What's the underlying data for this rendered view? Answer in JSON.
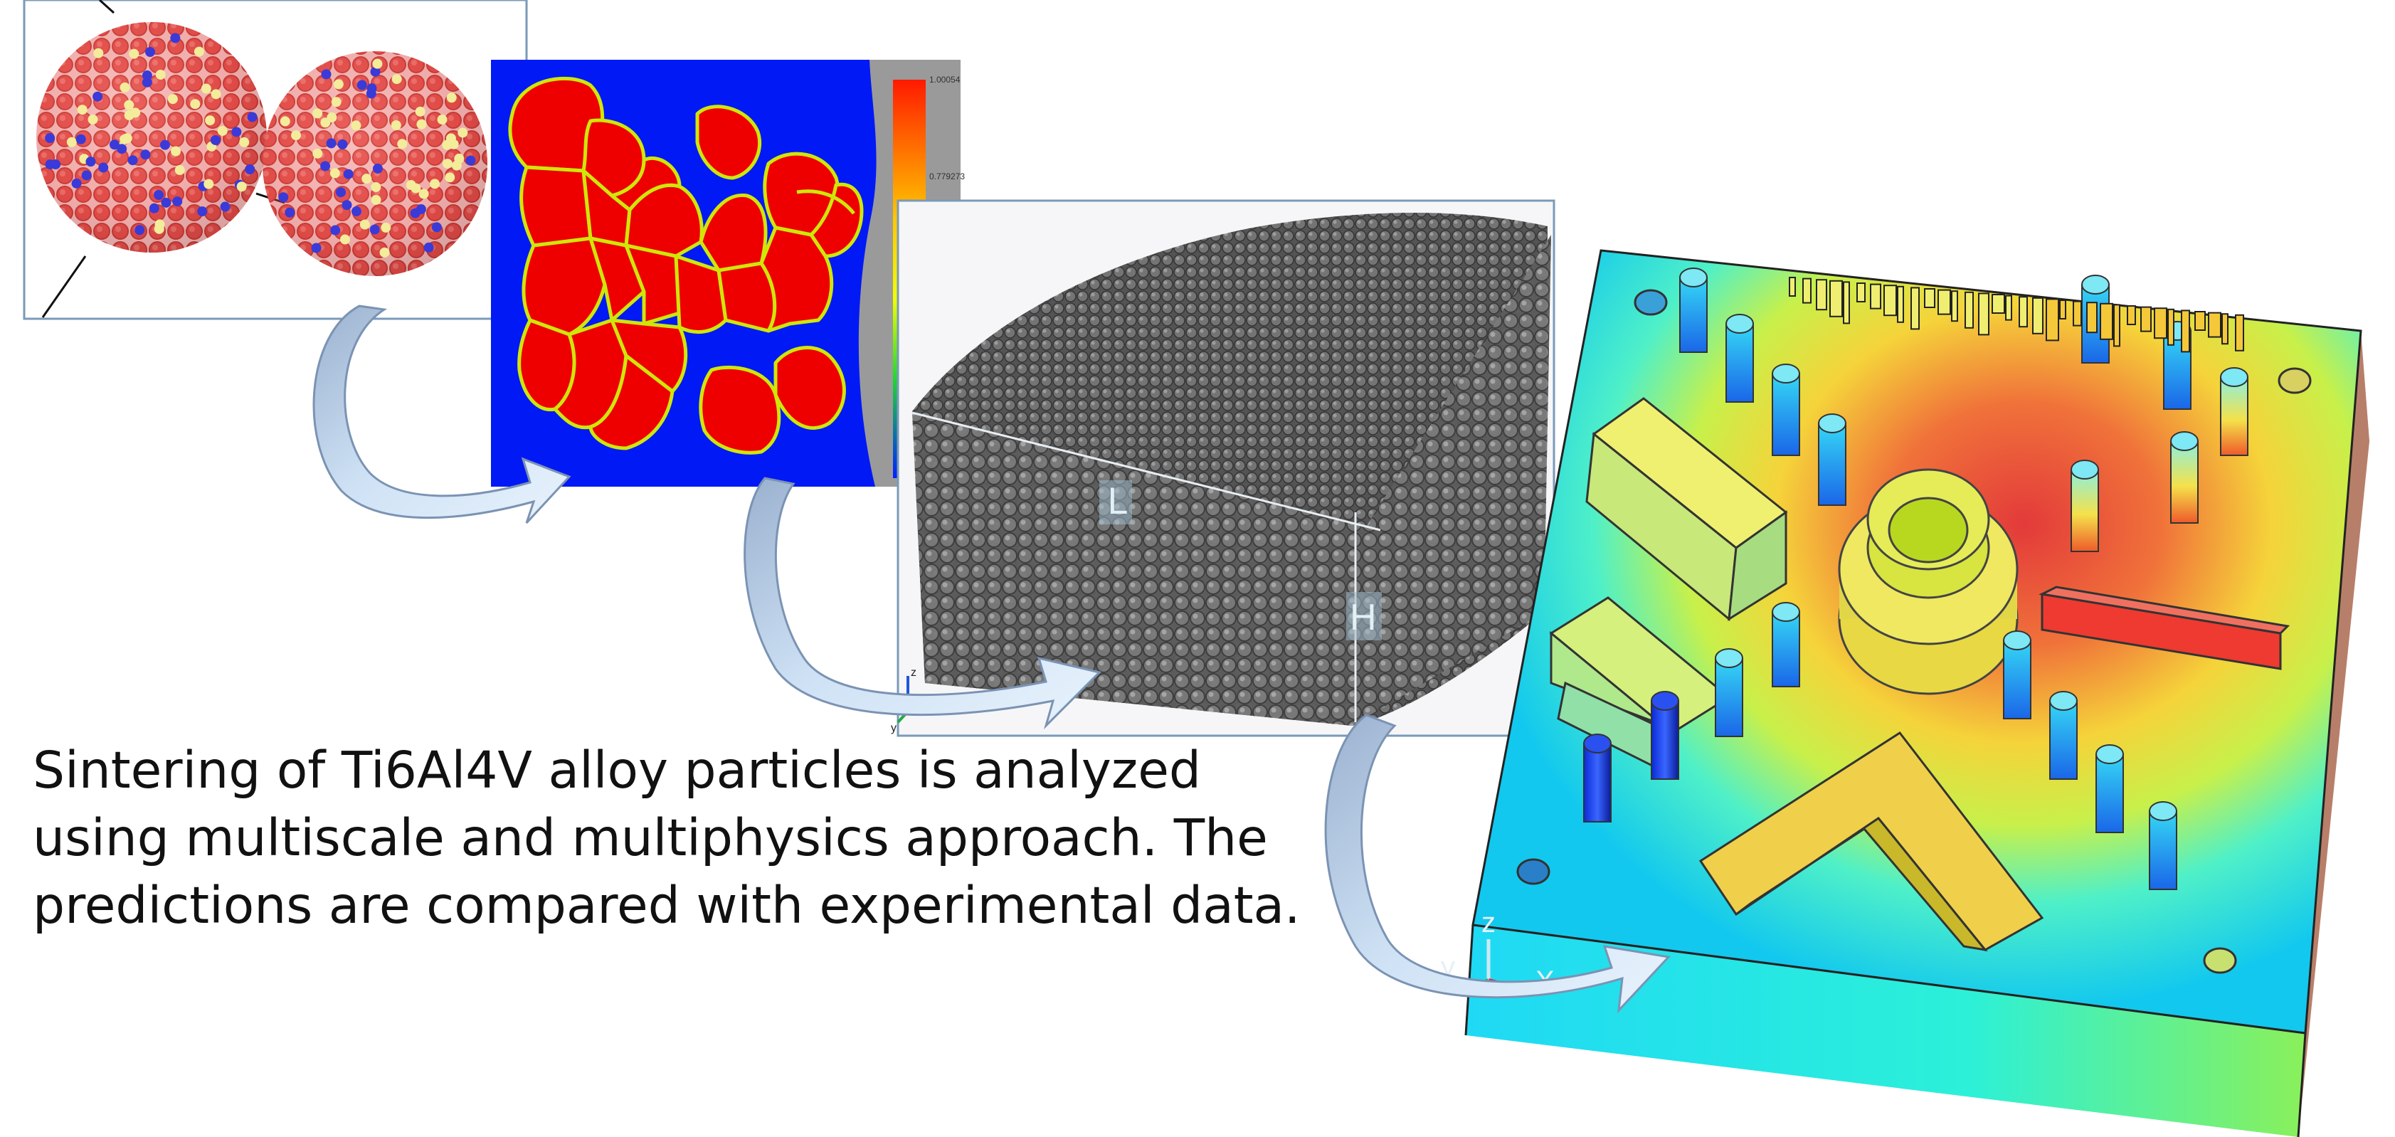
{
  "caption": {
    "lines": [
      "Sintering of Ti6Al4V alloy particles is analyzed",
      "using multiscale and multiphysics approach. The",
      "predictions are compared with experimental data."
    ]
  },
  "packing_panel": {
    "labels": {
      "length": "L",
      "height": "H"
    },
    "axis": {
      "z": "z",
      "y": "y"
    }
  },
  "part_panel": {
    "axis": {
      "x": "X",
      "y": "y",
      "z": "z"
    }
  },
  "colormap_panel": {
    "legend_ticks": [
      "1.00054",
      "0.779273"
    ]
  },
  "colors": {
    "particle_red": "#e24a47",
    "grain_red": "#ee0000",
    "background_blue": "#0019f5",
    "grain_boundary": "#cfe60a",
    "powder_gray": "#6e6e6e",
    "arrow_fill": "#cde2f5",
    "arrow_stroke": "#7b93b3"
  },
  "icons": [
    "two-particle-icon",
    "phase-field-grains-icon",
    "powder-bed-icon",
    "printed-part-icon",
    "process-arrow-icon"
  ]
}
